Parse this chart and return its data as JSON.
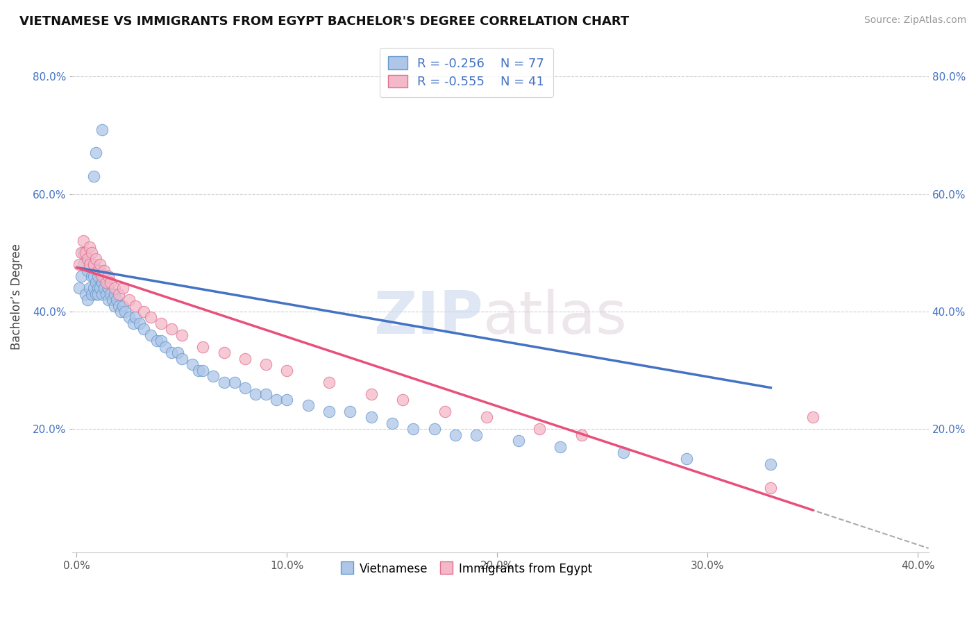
{
  "title": "VIETNAMESE VS IMMIGRANTS FROM EGYPT BACHELOR'S DEGREE CORRELATION CHART",
  "source": "Source: ZipAtlas.com",
  "xlabel": "",
  "ylabel": "Bachelor’s Degree",
  "xlim": [
    -0.002,
    0.405
  ],
  "ylim": [
    -0.01,
    0.86
  ],
  "xtick_labels": [
    "0.0%",
    "",
    "10.0%",
    "",
    "20.0%",
    "",
    "30.0%",
    "",
    "40.0%"
  ],
  "xtick_vals": [
    0.0,
    0.05,
    0.1,
    0.15,
    0.2,
    0.25,
    0.3,
    0.35,
    0.4
  ],
  "xtick_display": [
    0.0,
    0.1,
    0.2,
    0.3,
    0.4
  ],
  "xtick_display_labels": [
    "0.0%",
    "10.0%",
    "20.0%",
    "30.0%",
    "40.0%"
  ],
  "ytick_vals": [
    0.2,
    0.4,
    0.6,
    0.8
  ],
  "ytick_labels": [
    "20.0%",
    "40.0%",
    "60.0%",
    "80.0%"
  ],
  "r_vietnamese": -0.256,
  "n_vietnamese": 77,
  "r_egypt": -0.555,
  "n_egypt": 41,
  "color_vietnamese_fill": "#aec6e8",
  "color_vietnamese_edge": "#6699cc",
  "color_egypt_fill": "#f4b8c8",
  "color_egypt_edge": "#e07090",
  "color_line_vietnamese": "#4472c4",
  "color_line_egypt": "#e8507a",
  "color_dashed": "#aaaaaa",
  "legend_label_vietnamese": "Vietnamese",
  "legend_label_egypt": "Immigrants from Egypt",
  "watermark_zip": "ZIP",
  "watermark_atlas": "atlas",
  "vline_intercept": 0.475,
  "vline_slope": -0.62,
  "eline_intercept": 0.475,
  "eline_slope": -1.18,
  "vietnamese_x": [
    0.001,
    0.002,
    0.003,
    0.003,
    0.004,
    0.005,
    0.005,
    0.006,
    0.006,
    0.007,
    0.007,
    0.008,
    0.008,
    0.008,
    0.009,
    0.009,
    0.01,
    0.01,
    0.01,
    0.011,
    0.011,
    0.012,
    0.012,
    0.013,
    0.013,
    0.014,
    0.015,
    0.015,
    0.016,
    0.017,
    0.018,
    0.018,
    0.019,
    0.02,
    0.021,
    0.022,
    0.023,
    0.025,
    0.027,
    0.028,
    0.03,
    0.032,
    0.035,
    0.038,
    0.04,
    0.042,
    0.045,
    0.048,
    0.05,
    0.055,
    0.058,
    0.06,
    0.065,
    0.07,
    0.075,
    0.08,
    0.085,
    0.09,
    0.095,
    0.1,
    0.11,
    0.12,
    0.13,
    0.14,
    0.15,
    0.16,
    0.17,
    0.18,
    0.19,
    0.21,
    0.23,
    0.26,
    0.29,
    0.33,
    0.008,
    0.009,
    0.012
  ],
  "vietnamese_y": [
    0.44,
    0.46,
    0.48,
    0.5,
    0.43,
    0.42,
    0.47,
    0.44,
    0.48,
    0.43,
    0.46,
    0.44,
    0.46,
    0.48,
    0.43,
    0.45,
    0.44,
    0.46,
    0.43,
    0.44,
    0.47,
    0.43,
    0.45,
    0.44,
    0.46,
    0.43,
    0.44,
    0.42,
    0.43,
    0.42,
    0.41,
    0.43,
    0.42,
    0.41,
    0.4,
    0.41,
    0.4,
    0.39,
    0.38,
    0.39,
    0.38,
    0.37,
    0.36,
    0.35,
    0.35,
    0.34,
    0.33,
    0.33,
    0.32,
    0.31,
    0.3,
    0.3,
    0.29,
    0.28,
    0.28,
    0.27,
    0.26,
    0.26,
    0.25,
    0.25,
    0.24,
    0.23,
    0.23,
    0.22,
    0.21,
    0.2,
    0.2,
    0.19,
    0.19,
    0.18,
    0.17,
    0.16,
    0.15,
    0.14,
    0.63,
    0.67,
    0.71
  ],
  "egypt_x": [
    0.001,
    0.002,
    0.003,
    0.004,
    0.005,
    0.006,
    0.006,
    0.007,
    0.008,
    0.009,
    0.01,
    0.011,
    0.012,
    0.013,
    0.014,
    0.015,
    0.016,
    0.018,
    0.02,
    0.022,
    0.025,
    0.028,
    0.032,
    0.035,
    0.04,
    0.045,
    0.05,
    0.06,
    0.07,
    0.08,
    0.09,
    0.1,
    0.12,
    0.14,
    0.155,
    0.175,
    0.195,
    0.22,
    0.24,
    0.35,
    0.33
  ],
  "egypt_y": [
    0.48,
    0.5,
    0.52,
    0.5,
    0.49,
    0.51,
    0.48,
    0.5,
    0.48,
    0.49,
    0.47,
    0.48,
    0.46,
    0.47,
    0.45,
    0.46,
    0.45,
    0.44,
    0.43,
    0.44,
    0.42,
    0.41,
    0.4,
    0.39,
    0.38,
    0.37,
    0.36,
    0.34,
    0.33,
    0.32,
    0.31,
    0.3,
    0.28,
    0.26,
    0.25,
    0.23,
    0.22,
    0.2,
    0.19,
    0.22,
    0.1
  ]
}
